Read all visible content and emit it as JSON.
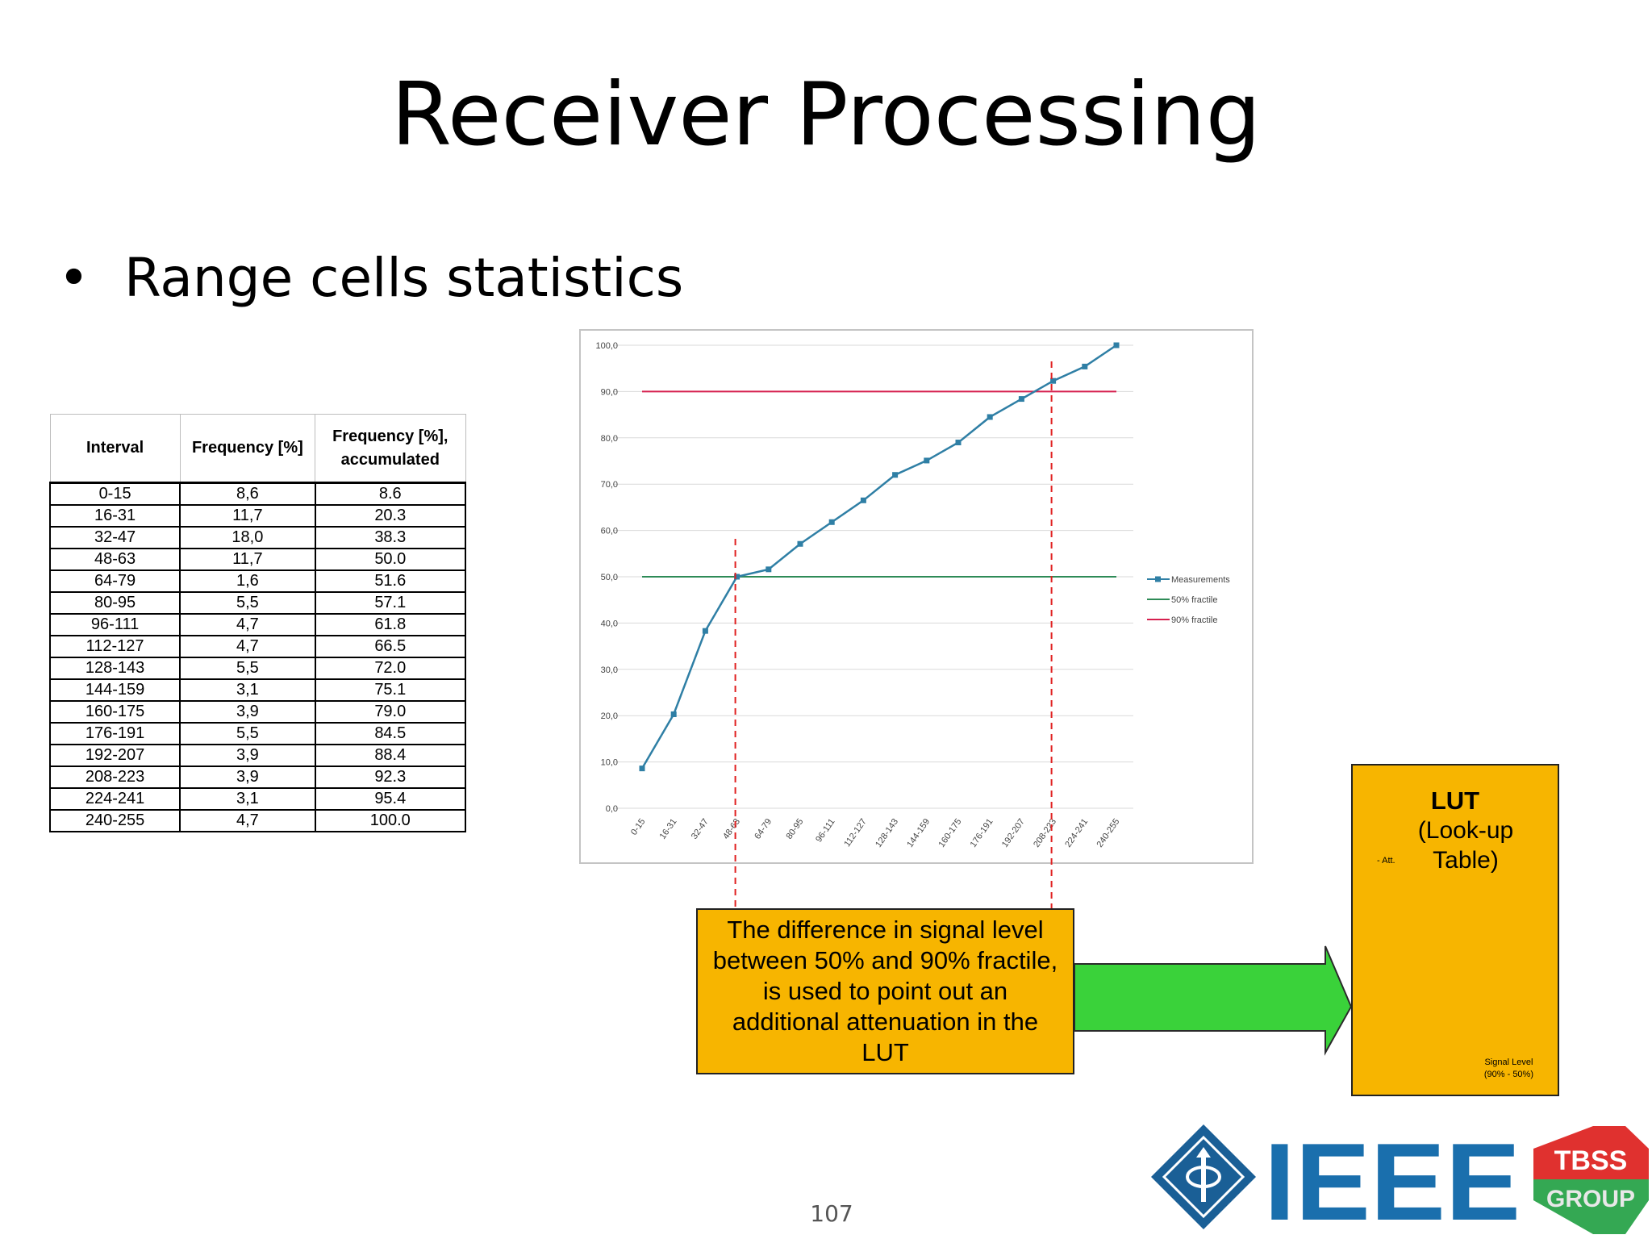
{
  "slide": {
    "title": "Receiver Processing",
    "bullet": "Range cells statistics",
    "page_number": "107"
  },
  "table": {
    "headers": [
      "Interval",
      "Frequency [%]",
      "Frequency [%], accumulated"
    ],
    "header_line1": "Frequency [%],",
    "header_line2": "accumulated",
    "rows": [
      [
        "0-15",
        "8,6",
        "8.6"
      ],
      [
        "16-31",
        "11,7",
        "20.3"
      ],
      [
        "32-47",
        "18,0",
        "38.3"
      ],
      [
        "48-63",
        "11,7",
        "50.0"
      ],
      [
        "64-79",
        "1,6",
        "51.6"
      ],
      [
        "80-95",
        "5,5",
        "57.1"
      ],
      [
        "96-111",
        "4,7",
        "61.8"
      ],
      [
        "112-127",
        "4,7",
        "66.5"
      ],
      [
        "128-143",
        "5,5",
        "72.0"
      ],
      [
        "144-159",
        "3,1",
        "75.1"
      ],
      [
        "160-175",
        "3,9",
        "79.0"
      ],
      [
        "176-191",
        "5,5",
        "84.5"
      ],
      [
        "192-207",
        "3,9",
        "88.4"
      ],
      [
        "208-223",
        "3,9",
        "92.3"
      ],
      [
        "224-241",
        "3,1",
        "95.4"
      ],
      [
        "240-255",
        "4,7",
        "100.0"
      ]
    ]
  },
  "chart_data": {
    "type": "line",
    "title": "",
    "xlabel": "",
    "ylabel": "",
    "ylim": [
      0,
      100
    ],
    "y_ticks": [
      "0,0",
      "10,0",
      "20,0",
      "30,0",
      "40,0",
      "50,0",
      "60,0",
      "70,0",
      "80,0",
      "90,0",
      "100,0"
    ],
    "categories": [
      "0-15",
      "16-31",
      "32-47",
      "48-63",
      "64-79",
      "80-95",
      "96-111",
      "112-127",
      "128-143",
      "144-159",
      "160-175",
      "176-191",
      "192-207",
      "208-223",
      "224-241",
      "240-255"
    ],
    "series": [
      {
        "name": "Measurements",
        "color": "#2f7fa5",
        "values": [
          8.6,
          20.3,
          38.3,
          50.0,
          51.6,
          57.1,
          61.8,
          66.5,
          72.0,
          75.1,
          79.0,
          84.5,
          88.4,
          92.3,
          95.4,
          100.0
        ]
      },
      {
        "name": "50% fractile",
        "color": "#2e8b57",
        "constant": 50
      },
      {
        "name": "90% fractile",
        "color": "#d6204f",
        "constant": 90
      }
    ],
    "legend_position": "right",
    "grid": true,
    "guide_lines": [
      {
        "at_category": "48-63",
        "color": "#e02020"
      },
      {
        "at_category": "208-223",
        "color": "#e02020"
      }
    ]
  },
  "callout": {
    "text": "The difference in signal level between 50% and 90% fractile, is used to point out an additional attenuation in the LUT",
    "color": "#f7b500",
    "arrow_color": "#33cc33"
  },
  "lut": {
    "title": "LUT",
    "subtitle": "(Look-up Table)",
    "y_axis_label": "- Att.",
    "x_axis_label_line1": "Signal Level",
    "x_axis_label_line2": "(90% - 50%)"
  },
  "logos": {
    "ieee": "IEEE",
    "tbss_line1": "TBSS",
    "tbss_line2": "GROUP"
  }
}
